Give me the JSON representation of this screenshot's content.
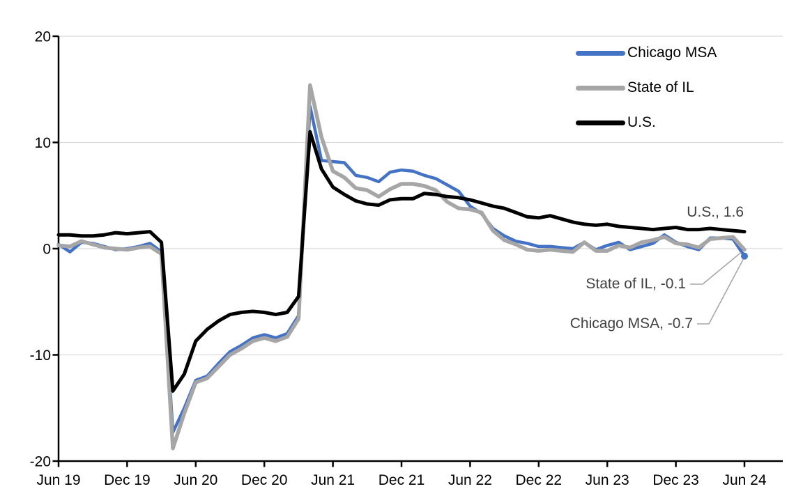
{
  "chart_data": {
    "type": "line",
    "title": "",
    "x_axis": {
      "start": "Jun 19",
      "end": "Jun 24",
      "frequency": "monthly",
      "points_per_series": 61,
      "tick_every_n_points": 6,
      "tick_labels": [
        "Jun 19",
        "Dec 19",
        "Jun 20",
        "Dec 20",
        "Jun 21",
        "Dec 21",
        "Jun 22",
        "Dec 22",
        "Jun 23",
        "Dec 23",
        "Jun 24"
      ]
    },
    "y_axis": {
      "min": -20,
      "max": 20,
      "tick_interval": 10,
      "tick_values": [
        20,
        10,
        0,
        -10,
        -20
      ],
      "tick_labels": [
        "20",
        "10",
        "0",
        "-10",
        "-20"
      ],
      "gridlines": true
    },
    "legend": {
      "position": "top-right",
      "items": [
        "Chicago MSA",
        "State of IL",
        "U.S."
      ]
    },
    "series": [
      {
        "name": "Chicago MSA",
        "color": "#4472C4",
        "width": 4.5,
        "end_marker": true,
        "values": [
          0.4,
          -0.3,
          0.6,
          0.5,
          0.2,
          -0.1,
          0.0,
          0.2,
          0.5,
          -0.3,
          -17.3,
          -15.0,
          -12.4,
          -12.0,
          -10.8,
          -9.7,
          -9.1,
          -8.4,
          -8.1,
          -8.4,
          -8.0,
          -6.3,
          13.4,
          8.3,
          8.2,
          8.1,
          6.9,
          6.7,
          6.3,
          7.2,
          7.4,
          7.3,
          6.9,
          6.6,
          6.0,
          5.4,
          4.0,
          3.3,
          1.9,
          1.2,
          0.7,
          0.5,
          0.2,
          0.2,
          0.1,
          0.0,
          0.6,
          -0.1,
          0.3,
          0.6,
          -0.1,
          0.2,
          0.5,
          1.3,
          0.6,
          0.2,
          -0.1,
          1.0,
          1.0,
          0.9,
          -0.7
        ]
      },
      {
        "name": "State of IL",
        "color": "#A6A6A6",
        "width": 5.5,
        "end_marker": false,
        "values": [
          0.3,
          0.2,
          0.7,
          0.4,
          0.1,
          0.0,
          -0.1,
          0.1,
          0.2,
          -0.5,
          -18.8,
          -15.5,
          -12.6,
          -12.2,
          -11.1,
          -10.0,
          -9.4,
          -8.7,
          -8.4,
          -8.7,
          -8.3,
          -6.6,
          15.4,
          10.5,
          7.3,
          6.7,
          5.7,
          5.5,
          4.9,
          5.6,
          6.1,
          6.1,
          5.9,
          5.5,
          4.4,
          3.8,
          3.7,
          3.4,
          1.7,
          0.8,
          0.4,
          -0.1,
          -0.2,
          -0.1,
          -0.2,
          -0.3,
          0.6,
          -0.2,
          -0.2,
          0.3,
          0.1,
          0.6,
          0.8,
          1.1,
          0.5,
          0.4,
          0.1,
          0.9,
          1.0,
          1.1,
          -0.1
        ]
      },
      {
        "name": "U.S.",
        "color": "#000000",
        "width": 5,
        "end_marker": false,
        "values": [
          1.3,
          1.3,
          1.2,
          1.2,
          1.3,
          1.5,
          1.4,
          1.5,
          1.6,
          0.6,
          -13.4,
          -11.8,
          -8.7,
          -7.6,
          -6.8,
          -6.2,
          -6.0,
          -5.9,
          -6.0,
          -6.2,
          -6.0,
          -4.5,
          11.0,
          7.5,
          5.8,
          5.1,
          4.5,
          4.2,
          4.1,
          4.6,
          4.7,
          4.7,
          5.2,
          5.1,
          4.9,
          4.8,
          4.6,
          4.3,
          4.0,
          3.8,
          3.4,
          3.0,
          2.9,
          3.1,
          2.8,
          2.5,
          2.3,
          2.2,
          2.3,
          2.1,
          2.0,
          1.9,
          1.8,
          1.9,
          2.0,
          1.8,
          1.8,
          1.9,
          1.8,
          1.7,
          1.6
        ]
      }
    ],
    "annotations": [
      {
        "text": "U.S., 1.6",
        "series": "U.S.",
        "value": 1.6
      },
      {
        "text": "State of IL, -0.1",
        "series": "State of IL",
        "value": -0.1
      },
      {
        "text": "Chicago MSA, -0.7",
        "series": "Chicago MSA",
        "value": -0.7
      }
    ],
    "style": {
      "gridline_color": "#D9D9D9",
      "axis_color": "#000000",
      "annotation_text_color": "#404040",
      "leader_line_color": "#A6A6A6",
      "background_color": "#FFFFFF"
    }
  }
}
